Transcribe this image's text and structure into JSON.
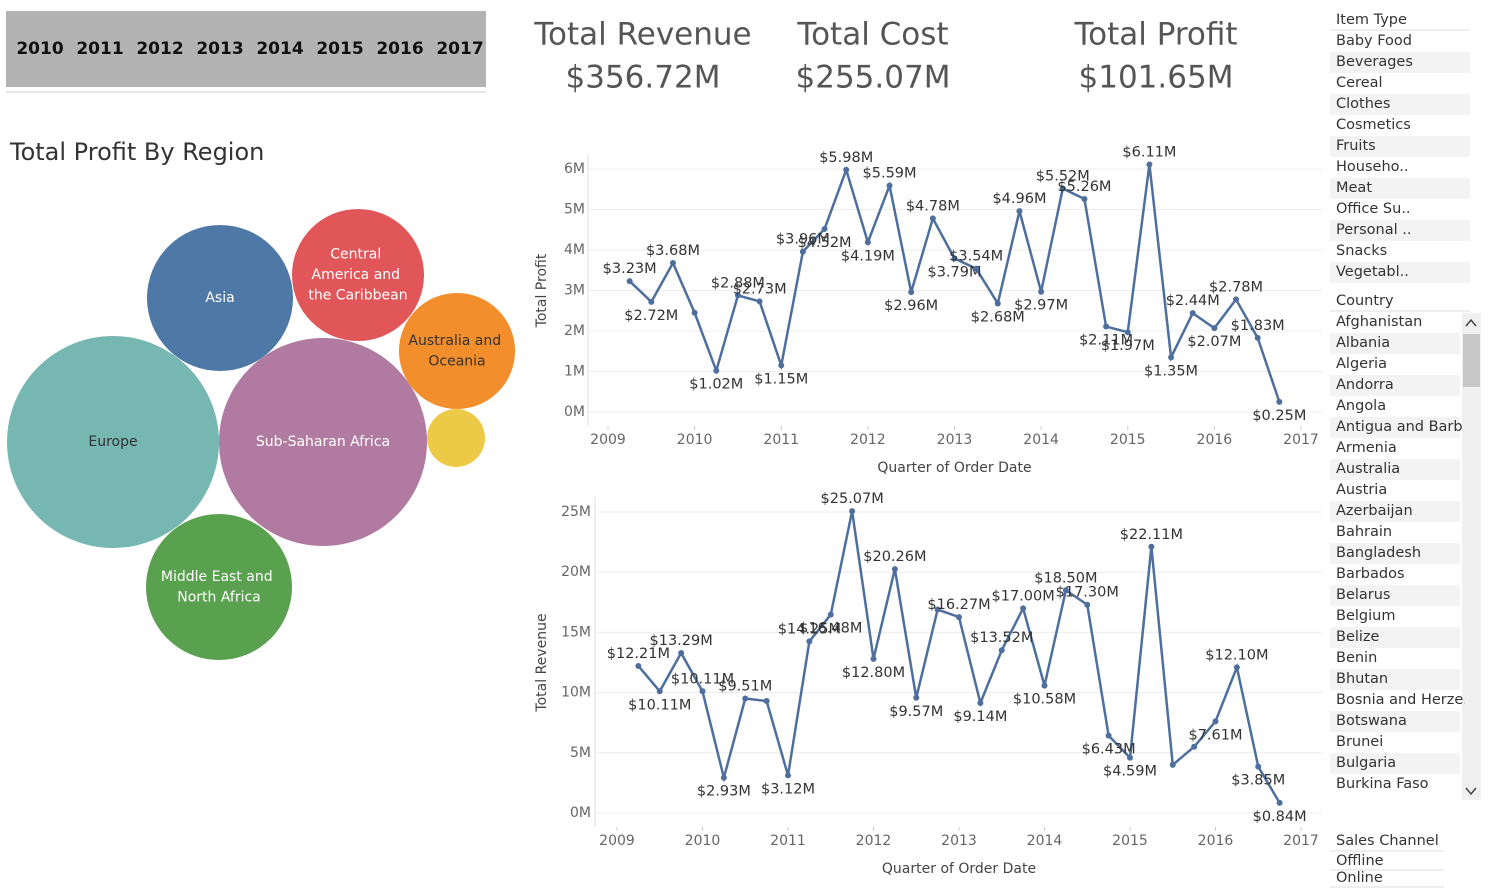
{
  "filters": {
    "years": [
      "2010",
      "2011",
      "2012",
      "2013",
      "2014",
      "2015",
      "2016",
      "2017"
    ]
  },
  "kpis": [
    {
      "title": "Total Revenue",
      "value": "$356.72M"
    },
    {
      "title": "Total Cost",
      "value": "$255.07M"
    },
    {
      "title": "Total Profit",
      "value": "$101.65M"
    }
  ],
  "chart_data": [
    {
      "type": "bubble",
      "title": "Total Profit By Region",
      "categories": [
        "Europe",
        "Sub-Saharan Africa",
        "Asia",
        "Central America and the Caribbean",
        "Middle East and North Africa",
        "Australia and Oceania",
        null
      ],
      "values": [
        27.67,
        26.64,
        13.13,
        10.73,
        13.13,
        8.29,
        2.07
      ],
      "colors": [
        "#76b7b2",
        "#b07aa1",
        "#4e79a7",
        "#e15759",
        "#59a14f",
        "#f28e2b",
        "#edc948"
      ]
    },
    {
      "type": "line",
      "xlabel": "Quarter of Order Date",
      "ylabel": "Total Profit",
      "x": [
        2009.25,
        2009.5,
        2009.75,
        2010,
        2010.25,
        2010.5,
        2010.75,
        2011,
        2011.25,
        2011.5,
        2011.75,
        2012,
        2012.25,
        2012.5,
        2012.75,
        2013,
        2013.25,
        2013.5,
        2013.75,
        2014,
        2014.25,
        2014.5,
        2014.75,
        2015,
        2015.25,
        2015.5,
        2015.75,
        2016,
        2016.25,
        2016.5,
        2016.75
      ],
      "xlim": [
        2009,
        2017
      ],
      "xticks": [
        2009,
        2010,
        2011,
        2012,
        2013,
        2014,
        2015,
        2016,
        2017
      ],
      "ylim": [
        0,
        6
      ],
      "yticks": [
        {
          "value": 0,
          "label": "0M"
        },
        {
          "value": 1,
          "label": "1M"
        },
        {
          "value": 2,
          "label": "2M"
        },
        {
          "value": 3,
          "label": "3M"
        },
        {
          "value": 4,
          "label": "4M"
        },
        {
          "value": 5,
          "label": "5M"
        },
        {
          "value": 6,
          "label": "6M"
        }
      ],
      "grid": true,
      "color": "#4e6f9e",
      "values": [
        3.23,
        2.72,
        3.68,
        2.45,
        1.02,
        2.88,
        2.73,
        1.15,
        3.96,
        4.52,
        5.98,
        4.19,
        5.59,
        2.96,
        4.78,
        3.79,
        3.54,
        2.68,
        4.96,
        2.97,
        5.52,
        5.26,
        2.11,
        1.97,
        6.11,
        1.35,
        2.44,
        2.07,
        2.78,
        1.83,
        0.25
      ],
      "value_labels": [
        "$3.23M",
        "$2.72M",
        "$3.68M",
        null,
        "$1.02M",
        "$2.88M",
        "$2.73M",
        "$1.15M",
        "$3.96M",
        "$4.52M",
        "$5.98M",
        "$4.19M",
        "$5.59M",
        "$2.96M",
        "$4.78M",
        "$3.79M",
        "$3.54M",
        "$2.68M",
        "$4.96M",
        "$2.97M",
        "$5.52M",
        "$5.26M",
        "$2.11M",
        "$1.97M",
        "$6.11M",
        "$1.35M",
        "$2.44M",
        "$2.07M",
        "$2.78M",
        "$1.83M",
        "$0.25M"
      ]
    },
    {
      "type": "line",
      "xlabel": "Quarter of Order Date",
      "ylabel": "Total Revenue",
      "x": [
        2009.25,
        2009.5,
        2009.75,
        2010,
        2010.25,
        2010.5,
        2010.75,
        2011,
        2011.25,
        2011.5,
        2011.75,
        2012,
        2012.25,
        2012.5,
        2012.75,
        2013,
        2013.25,
        2013.5,
        2013.75,
        2014,
        2014.25,
        2014.5,
        2014.75,
        2015,
        2015.25,
        2015.5,
        2015.75,
        2016,
        2016.25,
        2016.5,
        2016.75
      ],
      "xlim": [
        2009,
        2017
      ],
      "xticks": [
        2009,
        2010,
        2011,
        2012,
        2013,
        2014,
        2015,
        2016,
        2017
      ],
      "ylim": [
        0,
        25
      ],
      "yticks": [
        {
          "value": 0,
          "label": "0M"
        },
        {
          "value": 5,
          "label": "5M"
        },
        {
          "value": 10,
          "label": "10M"
        },
        {
          "value": 15,
          "label": "15M"
        },
        {
          "value": 20,
          "label": "20M"
        },
        {
          "value": 25,
          "label": "25M"
        }
      ],
      "grid": true,
      "color": "#4e6f9e",
      "values": [
        12.21,
        10.11,
        13.29,
        10.11,
        2.93,
        9.51,
        9.3,
        3.12,
        14.25,
        16.48,
        25.07,
        12.8,
        20.26,
        9.57,
        16.9,
        16.27,
        9.14,
        13.52,
        17.0,
        10.58,
        18.5,
        17.3,
        6.43,
        4.59,
        22.11,
        4.0,
        5.5,
        7.61,
        12.1,
        3.85,
        0.84
      ],
      "value_labels": [
        "$12.21M",
        "$10.11M",
        "$13.29M",
        "$10.11M",
        "$2.93M",
        "$9.51M",
        null,
        "$3.12M",
        "$14.25M",
        "$16.48M",
        "$25.07M",
        "$12.80M",
        "$20.26M",
        "$9.57M",
        null,
        "$16.27M",
        "$9.14M",
        "$13.52M",
        "$17.00M",
        "$10.58M",
        "$18.50M",
        "$17.30M",
        "$6.43M",
        "$4.59M",
        "$22.11M",
        null,
        null,
        "$7.61M",
        "$12.10M",
        "$3.85M",
        "$0.84M"
      ]
    }
  ],
  "lists": [
    {
      "title": "Item Type",
      "items": [
        "Baby Food",
        "Beverages",
        "Cereal",
        "Clothes",
        "Cosmetics",
        "Fruits",
        "Househo..",
        "Meat",
        "Office Su..",
        "Personal ..",
        "Snacks",
        "Vegetabl.."
      ]
    },
    {
      "title": "Country",
      "items": [
        "Afghanistan",
        "Albania",
        "Algeria",
        "Andorra",
        "Angola",
        "Antigua and Barb",
        "Armenia",
        "Australia",
        "Austria",
        "Azerbaijan",
        "Bahrain",
        "Bangladesh",
        "Barbados",
        "Belarus",
        "Belgium",
        "Belize",
        "Benin",
        "Bhutan",
        "Bosnia and Herze.",
        "Botswana",
        "Brunei",
        "Bulgaria",
        "Burkina Faso"
      ]
    },
    {
      "title": "Sales Channel",
      "items": [
        "Offline",
        "Online"
      ]
    }
  ]
}
